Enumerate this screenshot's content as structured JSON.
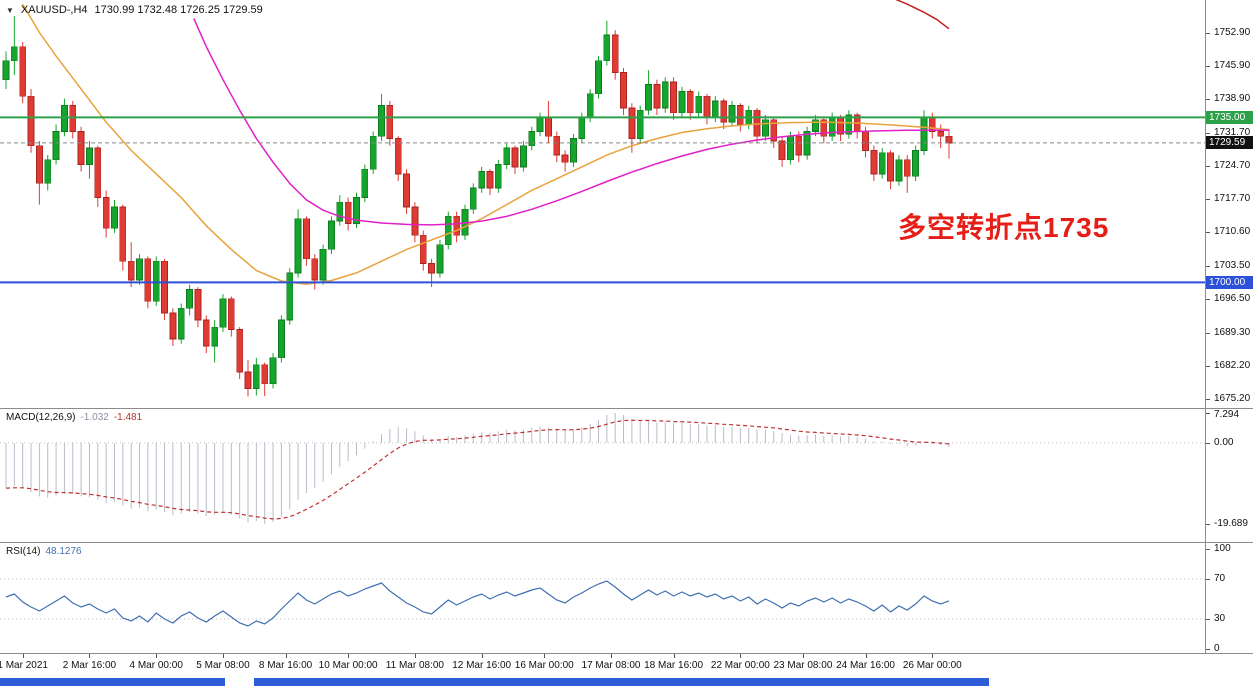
{
  "annotation": {
    "text": "多空转折点1735"
  },
  "palette": {
    "bull": "#16a52c",
    "bull_border": "#0c7a1e",
    "bear": "#e03a34",
    "bear_border": "#a82420",
    "ma_fast": "#e8a33d",
    "ma_slow": "#e020c8",
    "ma_long": "#c22020",
    "hline_green": "#2da04a",
    "hline_blue": "#2d50d8",
    "last_price_bg": "#111111",
    "last_price_line": "#888888",
    "macd_hist": "#b8bcc8",
    "macd_signal": "#c03030",
    "rsi_line": "#3f6fb0",
    "annotation": "#e51e17",
    "taskbar": "#2f5cd8",
    "grid_dots": "#c0c0c0"
  },
  "chart_data": {
    "type": "candlestick",
    "symbol_title": "XAUUSD-,H4",
    "ohlc_text": "1730.99 1732.48 1726.25 1729.59",
    "title": "XAUUSD- H4 candlestick chart with MACD and RSI",
    "price_axis": [
      1752.9,
      1745.9,
      1738.9,
      1731.7,
      1724.7,
      1717.7,
      1710.6,
      1703.5,
      1696.5,
      1689.3,
      1682.2,
      1675.2
    ],
    "hlines": [
      {
        "name": "resistance",
        "price": 1735.0,
        "label": "1735.00",
        "color_key": "hline_green"
      },
      {
        "name": "support",
        "price": 1700.0,
        "label": "1700.00",
        "color_key": "hline_blue"
      }
    ],
    "last_price": {
      "price": 1729.59,
      "label": "1729.59"
    },
    "candles": [
      [
        1743,
        1749,
        1741,
        1747
      ],
      [
        1747,
        1756.5,
        1744,
        1750
      ],
      [
        1750,
        1751,
        1738,
        1739.5
      ],
      [
        1739.5,
        1741,
        1727.5,
        1729
      ],
      [
        1729,
        1730,
        1716.5,
        1721
      ],
      [
        1721,
        1727,
        1719.5,
        1726
      ],
      [
        1726,
        1733.5,
        1725,
        1732
      ],
      [
        1732,
        1739,
        1731,
        1737.5
      ],
      [
        1737.5,
        1738.5,
        1730.5,
        1732
      ],
      [
        1732,
        1733,
        1723.5,
        1725
      ],
      [
        1725,
        1730,
        1722,
        1728.5
      ],
      [
        1728.5,
        1729,
        1716,
        1718
      ],
      [
        1718,
        1719.5,
        1709.5,
        1711.5
      ],
      [
        1711.5,
        1717.5,
        1710.5,
        1716
      ],
      [
        1716,
        1716.5,
        1702.5,
        1704.5
      ],
      [
        1704.5,
        1708.5,
        1699,
        1700.5
      ],
      [
        1700.5,
        1706,
        1699.5,
        1705
      ],
      [
        1705,
        1705.5,
        1694.5,
        1696
      ],
      [
        1696,
        1705.5,
        1695,
        1704.5
      ],
      [
        1704.5,
        1705,
        1692,
        1693.5
      ],
      [
        1693.5,
        1694.5,
        1686.5,
        1688
      ],
      [
        1688,
        1695.5,
        1687,
        1694.5
      ],
      [
        1694.5,
        1699.5,
        1693,
        1698.5
      ],
      [
        1698.5,
        1699,
        1690.5,
        1692
      ],
      [
        1692,
        1693,
        1685,
        1686.5
      ],
      [
        1686.5,
        1692,
        1683,
        1690.5
      ],
      [
        1690.5,
        1697.5,
        1689.5,
        1696.5
      ],
      [
        1696.5,
        1697,
        1688.5,
        1690
      ],
      [
        1690,
        1690.5,
        1679.5,
        1681
      ],
      [
        1681,
        1683.5,
        1675.8,
        1677.5
      ],
      [
        1677.5,
        1684,
        1676,
        1682.5
      ],
      [
        1682.5,
        1683,
        1675.9,
        1678.5
      ],
      [
        1678.5,
        1685,
        1677.5,
        1684
      ],
      [
        1684,
        1693,
        1683,
        1692
      ],
      [
        1692,
        1703,
        1691,
        1702
      ],
      [
        1702,
        1715.5,
        1701,
        1713.5
      ],
      [
        1713.5,
        1714,
        1703.5,
        1705
      ],
      [
        1705,
        1706,
        1698.5,
        1700.5
      ],
      [
        1700.5,
        1708,
        1699.5,
        1707
      ],
      [
        1707,
        1714,
        1706,
        1713
      ],
      [
        1713,
        1718.5,
        1712,
        1717
      ],
      [
        1717,
        1718,
        1711,
        1712.5
      ],
      [
        1712.5,
        1719,
        1711.5,
        1718
      ],
      [
        1718,
        1725,
        1717,
        1724
      ],
      [
        1724,
        1732,
        1723,
        1731
      ],
      [
        1731,
        1740,
        1730,
        1737.5
      ],
      [
        1737.5,
        1738.5,
        1729,
        1730.5
      ],
      [
        1730.5,
        1731,
        1721.5,
        1723
      ],
      [
        1723,
        1724,
        1714.5,
        1716
      ],
      [
        1716,
        1717,
        1708.5,
        1710
      ],
      [
        1710,
        1711,
        1702.5,
        1704
      ],
      [
        1704,
        1705,
        1699,
        1702
      ],
      [
        1702,
        1709,
        1701,
        1708
      ],
      [
        1708,
        1715,
        1707,
        1714
      ],
      [
        1714,
        1715,
        1708.5,
        1710
      ],
      [
        1710,
        1716.5,
        1709,
        1715.5
      ],
      [
        1715.5,
        1721,
        1714.5,
        1720
      ],
      [
        1720,
        1724.5,
        1719,
        1723.5
      ],
      [
        1723.5,
        1724,
        1718.5,
        1720
      ],
      [
        1720,
        1726,
        1719,
        1725
      ],
      [
        1725,
        1729.5,
        1724,
        1728.5
      ],
      [
        1728.5,
        1729,
        1723,
        1724.5
      ],
      [
        1724.5,
        1730,
        1723.5,
        1729
      ],
      [
        1729,
        1733,
        1728,
        1732
      ],
      [
        1732,
        1736,
        1731,
        1735
      ],
      [
        1735,
        1738.5,
        1729.5,
        1731
      ],
      [
        1731,
        1732,
        1725.5,
        1727
      ],
      [
        1727,
        1728,
        1723.5,
        1725.5
      ],
      [
        1725.5,
        1731.5,
        1724.5,
        1730.5
      ],
      [
        1730.5,
        1736,
        1729.5,
        1735
      ],
      [
        1735,
        1741,
        1734,
        1740
      ],
      [
        1740,
        1748,
        1739,
        1747
      ],
      [
        1747,
        1755.5,
        1746,
        1752.5
      ],
      [
        1752.5,
        1753.5,
        1743,
        1744.5
      ],
      [
        1744.5,
        1745.5,
        1735.5,
        1737
      ],
      [
        1737,
        1738,
        1727.5,
        1730.5
      ],
      [
        1730.5,
        1737.5,
        1729.5,
        1736.5
      ],
      [
        1736.5,
        1745,
        1735.5,
        1742
      ],
      [
        1742,
        1743,
        1735.5,
        1737
      ],
      [
        1737,
        1743.5,
        1736,
        1742.5
      ],
      [
        1742.5,
        1743.5,
        1734.5,
        1736
      ],
      [
        1736,
        1741.5,
        1735,
        1740.5
      ],
      [
        1740.5,
        1741,
        1734.5,
        1736
      ],
      [
        1736,
        1740.5,
        1735,
        1739.5
      ],
      [
        1739.5,
        1740,
        1733.5,
        1735
      ],
      [
        1735,
        1739.5,
        1734,
        1738.5
      ],
      [
        1738.5,
        1739,
        1732.5,
        1734
      ],
      [
        1734,
        1738.5,
        1733,
        1737.5
      ],
      [
        1737.5,
        1738,
        1732,
        1733.5
      ],
      [
        1733.5,
        1737.5,
        1732.5,
        1736.5
      ],
      [
        1736.5,
        1737,
        1729.5,
        1731
      ],
      [
        1731,
        1735.5,
        1730,
        1734.5
      ],
      [
        1734.5,
        1735,
        1728.5,
        1730
      ],
      [
        1730,
        1731,
        1724.5,
        1726
      ],
      [
        1726,
        1732,
        1725,
        1731
      ],
      [
        1731,
        1732,
        1725.5,
        1727
      ],
      [
        1727,
        1733,
        1726,
        1732
      ],
      [
        1732,
        1735.5,
        1731,
        1734.5
      ],
      [
        1734.5,
        1735,
        1729.5,
        1731
      ],
      [
        1731,
        1736,
        1730,
        1735
      ],
      [
        1735,
        1735.5,
        1730,
        1731.5
      ],
      [
        1731.5,
        1736.5,
        1730.5,
        1735.5
      ],
      [
        1735.5,
        1736,
        1730.5,
        1732
      ],
      [
        1732,
        1733,
        1726.5,
        1728
      ],
      [
        1728,
        1729,
        1721.5,
        1723
      ],
      [
        1723,
        1728.5,
        1722,
        1727.5
      ],
      [
        1727.5,
        1728,
        1719.8,
        1721.5
      ],
      [
        1721.5,
        1727,
        1720.5,
        1726
      ],
      [
        1726,
        1727,
        1719,
        1722.5
      ],
      [
        1722.5,
        1729,
        1721.5,
        1728
      ],
      [
        1728,
        1736.5,
        1727,
        1735
      ],
      [
        1735,
        1736,
        1730.5,
        1732
      ],
      [
        1732,
        1733.5,
        1728.5,
        1731
      ],
      [
        1730.99,
        1732.48,
        1726.25,
        1729.59
      ]
    ],
    "ma_fast": {
      "name": "moving-average-fast",
      "color_key": "ma_fast",
      "points": [
        [
          2,
          1759
        ],
        [
          4,
          1753
        ],
        [
          6,
          1748
        ],
        [
          9,
          1741
        ],
        [
          12,
          1734
        ],
        [
          15,
          1728
        ],
        [
          18,
          1723
        ],
        [
          21,
          1718
        ],
        [
          24,
          1712
        ],
        [
          27,
          1707
        ],
        [
          30,
          1702.5
        ],
        [
          33,
          1700.3
        ],
        [
          36,
          1699.6
        ],
        [
          39,
          1700.4
        ],
        [
          42,
          1702
        ],
        [
          45,
          1704.5
        ],
        [
          48,
          1707
        ],
        [
          51,
          1709
        ],
        [
          54,
          1711
        ],
        [
          57,
          1713.5
        ],
        [
          60,
          1716.5
        ],
        [
          63,
          1719.5
        ],
        [
          66,
          1722
        ],
        [
          69,
          1724.5
        ],
        [
          72,
          1727
        ],
        [
          75,
          1729
        ],
        [
          78,
          1730.5
        ],
        [
          81,
          1731.8
        ],
        [
          84,
          1732.6
        ],
        [
          87,
          1733.2
        ],
        [
          90,
          1733.6
        ],
        [
          94,
          1733.9
        ],
        [
          98,
          1734
        ],
        [
          102,
          1733.8
        ],
        [
          106,
          1733.4
        ],
        [
          110,
          1732.9
        ],
        [
          113,
          1732.4
        ]
      ]
    },
    "ma_slow": {
      "name": "moving-average-slow",
      "color_key": "ma_slow",
      "points": [
        [
          22.5,
          1756
        ],
        [
          24,
          1750
        ],
        [
          26,
          1743
        ],
        [
          28,
          1736.5
        ],
        [
          30,
          1730.5
        ],
        [
          32,
          1725.5
        ],
        [
          34,
          1721
        ],
        [
          36,
          1717.5
        ],
        [
          38,
          1715.3
        ],
        [
          40,
          1714
        ],
        [
          42,
          1713.2
        ],
        [
          45,
          1712.6
        ],
        [
          48,
          1712.3
        ],
        [
          51,
          1712.2
        ],
        [
          54,
          1712.4
        ],
        [
          57,
          1713
        ],
        [
          60,
          1714
        ],
        [
          63,
          1715.5
        ],
        [
          66,
          1717.3
        ],
        [
          69,
          1719.3
        ],
        [
          72,
          1721.4
        ],
        [
          75,
          1723.4
        ],
        [
          78,
          1725.2
        ],
        [
          81,
          1726.8
        ],
        [
          84,
          1728.2
        ],
        [
          87,
          1729.3
        ],
        [
          90,
          1730.2
        ],
        [
          93,
          1730.9
        ],
        [
          96,
          1731.4
        ],
        [
          99,
          1731.8
        ],
        [
          102,
          1732
        ],
        [
          105,
          1732.15
        ],
        [
          108,
          1732.25
        ],
        [
          113,
          1732.3
        ]
      ]
    },
    "ma_long": {
      "name": "moving-average-long",
      "color_key": "ma_long",
      "points": [
        [
          106,
          1760.5
        ],
        [
          108,
          1759
        ],
        [
          110,
          1757.3
        ],
        [
          111.5,
          1755.8
        ],
        [
          113,
          1753.8
        ]
      ]
    },
    "macd": {
      "label": "MACD(12,26,9)",
      "main_value": "-1.032",
      "signal_value": "-1.481",
      "axis": [
        {
          "v": 7.294,
          "t": "7.294"
        },
        {
          "v": 0,
          "t": "0.00"
        },
        {
          "v": -19.689,
          "t": "-19.689"
        }
      ],
      "values": [
        -11.0,
        -10.5,
        -11.0,
        -12.0,
        -13.0,
        -13.3,
        -12.8,
        -12.2,
        -12.4,
        -13.0,
        -13.2,
        -13.8,
        -14.6,
        -14.4,
        -15.2,
        -16.0,
        -15.8,
        -16.6,
        -16.2,
        -16.8,
        -17.6,
        -17.2,
        -16.8,
        -17.2,
        -17.8,
        -17.4,
        -16.8,
        -17.4,
        -18.4,
        -19.3,
        -19.0,
        -19.689,
        -19.2,
        -18.0,
        -16.2,
        -13.8,
        -12.2,
        -11.0,
        -9.4,
        -7.6,
        -5.8,
        -4.4,
        -3.0,
        -1.4,
        0.4,
        2.2,
        3.4,
        4.0,
        3.6,
        2.8,
        1.8,
        0.8,
        1.0,
        1.6,
        1.4,
        1.8,
        2.2,
        2.6,
        2.4,
        2.8,
        3.2,
        3.0,
        3.3,
        3.7,
        4.0,
        3.8,
        3.4,
        3.0,
        3.3,
        3.8,
        4.6,
        5.6,
        6.8,
        7.294,
        6.8,
        5.8,
        5.2,
        5.4,
        5.0,
        5.2,
        4.8,
        4.9,
        4.5,
        4.6,
        4.2,
        4.3,
        3.9,
        4.0,
        3.6,
        3.7,
        3.2,
        3.3,
        2.9,
        2.4,
        2.0,
        1.8,
        1.9,
        2.1,
        1.8,
        1.9,
        1.6,
        1.7,
        1.4,
        1.0,
        0.4,
        0.3,
        -0.3,
        -0.2,
        -0.8,
        -0.6,
        0.1,
        -0.2,
        -0.6,
        -1.032
      ]
    },
    "rsi": {
      "label": "RSI(14)",
      "value": "48.1276",
      "axis": [
        {
          "v": 100,
          "t": "100"
        },
        {
          "v": 70,
          "t": "70"
        },
        {
          "v": 30,
          "t": "30"
        },
        {
          "v": 0,
          "t": "0"
        }
      ],
      "levels": [
        70,
        30
      ],
      "values": [
        52,
        55,
        47,
        42,
        38,
        43,
        48,
        53,
        46,
        42,
        45,
        40,
        36,
        40,
        31,
        28,
        33,
        27,
        36,
        30,
        26,
        33,
        37,
        31,
        27,
        33,
        38,
        32,
        26,
        23,
        28,
        25,
        31,
        40,
        48,
        56,
        49,
        45,
        50,
        55,
        58,
        53,
        56,
        60,
        63,
        66,
        58,
        52,
        46,
        42,
        37,
        35,
        42,
        49,
        44,
        48,
        52,
        55,
        50,
        54,
        57,
        53,
        56,
        59,
        61,
        55,
        49,
        46,
        52,
        56,
        61,
        65,
        68,
        62,
        55,
        49,
        54,
        59,
        54,
        58,
        53,
        57,
        53,
        56,
        52,
        55,
        50,
        53,
        48,
        52,
        45,
        50,
        46,
        41,
        46,
        43,
        48,
        51,
        47,
        51,
        46,
        50,
        47,
        43,
        38,
        44,
        37,
        43,
        39,
        45,
        53,
        48,
        45,
        48.13
      ]
    },
    "time_labels": [
      {
        "bar": 2,
        "text": "1 Mar 2021"
      },
      {
        "bar": 10,
        "text": "2 Mar 16:00"
      },
      {
        "bar": 18,
        "text": "4 Mar 00:00"
      },
      {
        "bar": 26,
        "text": "5 Mar 08:00"
      },
      {
        "bar": 33.5,
        "text": "8 Mar 16:00"
      },
      {
        "bar": 41,
        "text": "10 Mar 00:00"
      },
      {
        "bar": 49,
        "text": "11 Mar 08:00"
      },
      {
        "bar": 57,
        "text": "12 Mar 16:00"
      },
      {
        "bar": 64.5,
        "text": "16 Mar 00:00"
      },
      {
        "bar": 72.5,
        "text": "17 Mar 08:00"
      },
      {
        "bar": 80,
        "text": "18 Mar 16:00"
      },
      {
        "bar": 88,
        "text": "22 Mar 00:00"
      },
      {
        "bar": 95.5,
        "text": "23 Mar 08:00"
      },
      {
        "bar": 103,
        "text": "24 Mar 16:00"
      },
      {
        "bar": 111,
        "text": "26 Mar 00:00"
      }
    ]
  }
}
